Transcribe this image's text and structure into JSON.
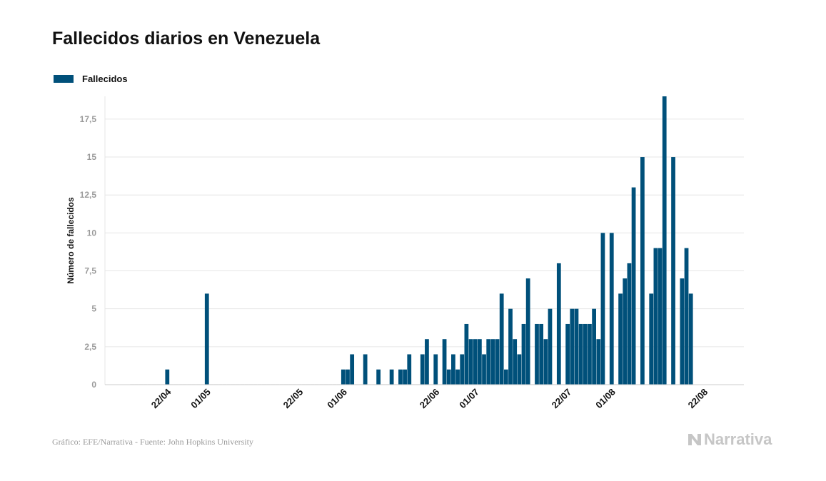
{
  "title": "Fallecidos diarios en Venezuela",
  "legend_label": "Fallecidos",
  "source": "Gráfico: EFE/Narrativa - Fuente: John Hopkins University",
  "brand": "Narrativa",
  "colors": {
    "bar": "#00507a",
    "grid": "#e6e6e6",
    "axis": "#cccccc"
  },
  "chart_data": {
    "type": "bar",
    "title": "Fallecidos diarios en Venezuela",
    "xlabel": "",
    "ylabel": "Número de fallecidos",
    "series": [
      {
        "name": "Fallecidos"
      }
    ],
    "ylim": [
      0,
      19
    ],
    "yticks": [
      0,
      2.5,
      5,
      7.5,
      10,
      12.5,
      15,
      17.5
    ],
    "ytick_labels": [
      "0",
      "2,5",
      "5",
      "7,5",
      "10",
      "12,5",
      "15",
      "17,5"
    ],
    "xtick_labels": [
      "22/04",
      "01/05",
      "22/05",
      "01/06",
      "22/06",
      "01/07",
      "22/07",
      "01/08",
      "22/08"
    ],
    "xtick_dates": [
      "2020-04-22",
      "2020-05-01",
      "2020-05-22",
      "2020-06-01",
      "2020-06-22",
      "2020-07-01",
      "2020-07-22",
      "2020-08-01",
      "2020-08-22"
    ],
    "grid": true,
    "legend_position": "top-left",
    "data": [
      [
        "2020-04-14",
        0
      ],
      [
        "2020-04-15",
        0
      ],
      [
        "2020-04-16",
        0
      ],
      [
        "2020-04-17",
        0
      ],
      [
        "2020-04-18",
        0
      ],
      [
        "2020-04-19",
        0
      ],
      [
        "2020-04-20",
        0
      ],
      [
        "2020-04-21",
        0
      ],
      [
        "2020-04-22",
        1
      ],
      [
        "2020-04-23",
        0
      ],
      [
        "2020-04-24",
        0
      ],
      [
        "2020-04-25",
        0
      ],
      [
        "2020-04-26",
        0
      ],
      [
        "2020-04-27",
        0
      ],
      [
        "2020-04-28",
        0
      ],
      [
        "2020-04-29",
        0
      ],
      [
        "2020-04-30",
        0
      ],
      [
        "2020-05-01",
        6
      ],
      [
        "2020-05-02",
        0
      ],
      [
        "2020-05-03",
        0
      ],
      [
        "2020-05-04",
        0
      ],
      [
        "2020-05-05",
        0
      ],
      [
        "2020-05-06",
        0
      ],
      [
        "2020-05-07",
        0
      ],
      [
        "2020-05-08",
        0
      ],
      [
        "2020-05-09",
        0
      ],
      [
        "2020-05-10",
        0
      ],
      [
        "2020-05-11",
        0
      ],
      [
        "2020-05-12",
        0
      ],
      [
        "2020-05-13",
        0
      ],
      [
        "2020-05-14",
        0
      ],
      [
        "2020-05-15",
        0
      ],
      [
        "2020-05-16",
        0
      ],
      [
        "2020-05-17",
        0
      ],
      [
        "2020-05-18",
        0
      ],
      [
        "2020-05-19",
        0
      ],
      [
        "2020-05-20",
        0
      ],
      [
        "2020-05-21",
        0
      ],
      [
        "2020-05-22",
        0
      ],
      [
        "2020-05-23",
        0
      ],
      [
        "2020-05-24",
        0
      ],
      [
        "2020-05-25",
        0
      ],
      [
        "2020-05-26",
        0
      ],
      [
        "2020-05-27",
        0
      ],
      [
        "2020-05-28",
        0
      ],
      [
        "2020-05-29",
        0
      ],
      [
        "2020-05-30",
        0
      ],
      [
        "2020-05-31",
        0
      ],
      [
        "2020-06-01",
        1
      ],
      [
        "2020-06-02",
        1
      ],
      [
        "2020-06-03",
        2
      ],
      [
        "2020-06-04",
        0
      ],
      [
        "2020-06-05",
        0
      ],
      [
        "2020-06-06",
        2
      ],
      [
        "2020-06-07",
        0
      ],
      [
        "2020-06-08",
        0
      ],
      [
        "2020-06-09",
        1
      ],
      [
        "2020-06-10",
        0
      ],
      [
        "2020-06-11",
        0
      ],
      [
        "2020-06-12",
        1
      ],
      [
        "2020-06-13",
        0
      ],
      [
        "2020-06-14",
        1
      ],
      [
        "2020-06-15",
        1
      ],
      [
        "2020-06-16",
        2
      ],
      [
        "2020-06-17",
        0
      ],
      [
        "2020-06-18",
        0
      ],
      [
        "2020-06-19",
        2
      ],
      [
        "2020-06-20",
        3
      ],
      [
        "2020-06-21",
        0
      ],
      [
        "2020-06-22",
        2
      ],
      [
        "2020-06-23",
        0
      ],
      [
        "2020-06-24",
        3
      ],
      [
        "2020-06-25",
        1
      ],
      [
        "2020-06-26",
        2
      ],
      [
        "2020-06-27",
        1
      ],
      [
        "2020-06-28",
        2
      ],
      [
        "2020-06-29",
        4
      ],
      [
        "2020-06-30",
        3
      ],
      [
        "2020-07-01",
        3
      ],
      [
        "2020-07-02",
        3
      ],
      [
        "2020-07-03",
        2
      ],
      [
        "2020-07-04",
        3
      ],
      [
        "2020-07-05",
        3
      ],
      [
        "2020-07-06",
        3
      ],
      [
        "2020-07-07",
        6
      ],
      [
        "2020-07-08",
        1
      ],
      [
        "2020-07-09",
        5
      ],
      [
        "2020-07-10",
        3
      ],
      [
        "2020-07-11",
        2
      ],
      [
        "2020-07-12",
        4
      ],
      [
        "2020-07-13",
        7
      ],
      [
        "2020-07-14",
        0
      ],
      [
        "2020-07-15",
        4
      ],
      [
        "2020-07-16",
        4
      ],
      [
        "2020-07-17",
        3
      ],
      [
        "2020-07-18",
        5
      ],
      [
        "2020-07-19",
        0
      ],
      [
        "2020-07-20",
        8
      ],
      [
        "2020-07-21",
        0
      ],
      [
        "2020-07-22",
        4
      ],
      [
        "2020-07-23",
        5
      ],
      [
        "2020-07-24",
        5
      ],
      [
        "2020-07-25",
        4
      ],
      [
        "2020-07-26",
        4
      ],
      [
        "2020-07-27",
        4
      ],
      [
        "2020-07-28",
        5
      ],
      [
        "2020-07-29",
        3
      ],
      [
        "2020-07-30",
        10
      ],
      [
        "2020-07-31",
        0
      ],
      [
        "2020-08-01",
        10
      ],
      [
        "2020-08-02",
        0
      ],
      [
        "2020-08-03",
        6
      ],
      [
        "2020-08-04",
        7
      ],
      [
        "2020-08-05",
        8
      ],
      [
        "2020-08-06",
        13
      ],
      [
        "2020-08-07",
        0
      ],
      [
        "2020-08-08",
        15
      ],
      [
        "2020-08-09",
        0
      ],
      [
        "2020-08-10",
        6
      ],
      [
        "2020-08-11",
        9
      ],
      [
        "2020-08-12",
        9
      ],
      [
        "2020-08-13",
        19
      ],
      [
        "2020-08-14",
        0
      ],
      [
        "2020-08-15",
        15
      ],
      [
        "2020-08-16",
        0
      ],
      [
        "2020-08-17",
        7
      ],
      [
        "2020-08-18",
        9
      ],
      [
        "2020-08-19",
        6
      ]
    ]
  }
}
